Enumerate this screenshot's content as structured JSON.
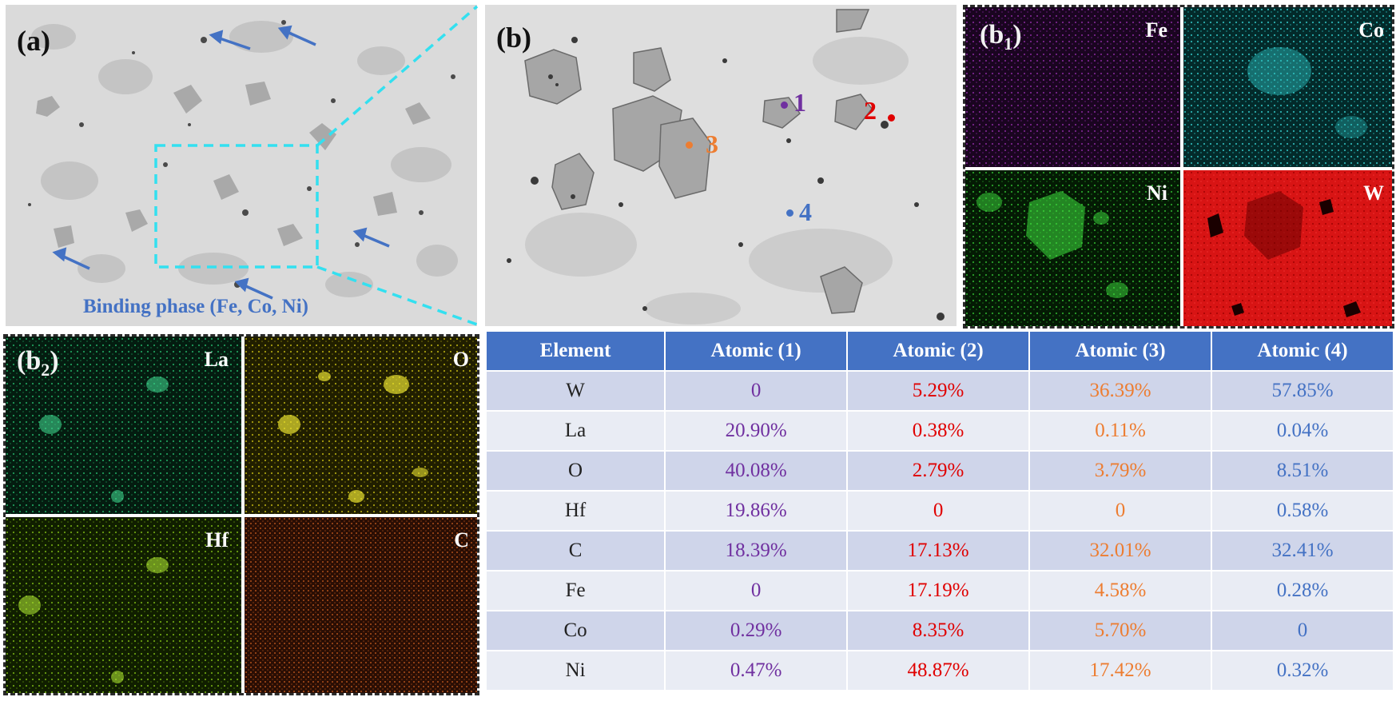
{
  "panels": {
    "a": {
      "label": "(a)",
      "annotation": "Binding phase (Fe, Co, Ni)"
    },
    "b": {
      "label": "(b)",
      "points": [
        "1",
        "2",
        "3",
        "4"
      ]
    },
    "b1": {
      "label_main": "(b",
      "label_sub": "1",
      "label_close": ")",
      "maps": [
        "Fe",
        "Co",
        "Ni",
        "W"
      ]
    },
    "b2": {
      "label_main": "(b",
      "label_sub": "2",
      "label_close": ")",
      "maps": [
        "La",
        "O",
        "Hf",
        "C"
      ]
    }
  },
  "colors": {
    "point1": "#7030a0",
    "point2": "#e00000",
    "point3": "#ed7d31",
    "point4": "#4472c4",
    "annotation": "#4472c4",
    "zoom_box": "#33e0f0",
    "table_header": "#4472c4"
  },
  "table": {
    "headers": [
      "Element",
      "Atomic (1)",
      "Atomic (2)",
      "Atomic (3)",
      "Atomic (4)"
    ],
    "rows": [
      [
        "W",
        "0",
        "5.29%",
        "36.39%",
        "57.85%"
      ],
      [
        "La",
        "20.90%",
        "0.38%",
        "0.11%",
        "0.04%"
      ],
      [
        "O",
        "40.08%",
        "2.79%",
        "3.79%",
        "8.51%"
      ],
      [
        "Hf",
        "19.86%",
        "0",
        "0",
        "0.58%"
      ],
      [
        "C",
        "18.39%",
        "17.13%",
        "32.01%",
        "32.41%"
      ],
      [
        "Fe",
        "0",
        "17.19%",
        "4.58%",
        "0.28%"
      ],
      [
        "Co",
        "0.29%",
        "8.35%",
        "5.70%",
        "0"
      ],
      [
        "Ni",
        "0.47%",
        "48.87%",
        "17.42%",
        "0.32%"
      ]
    ]
  }
}
